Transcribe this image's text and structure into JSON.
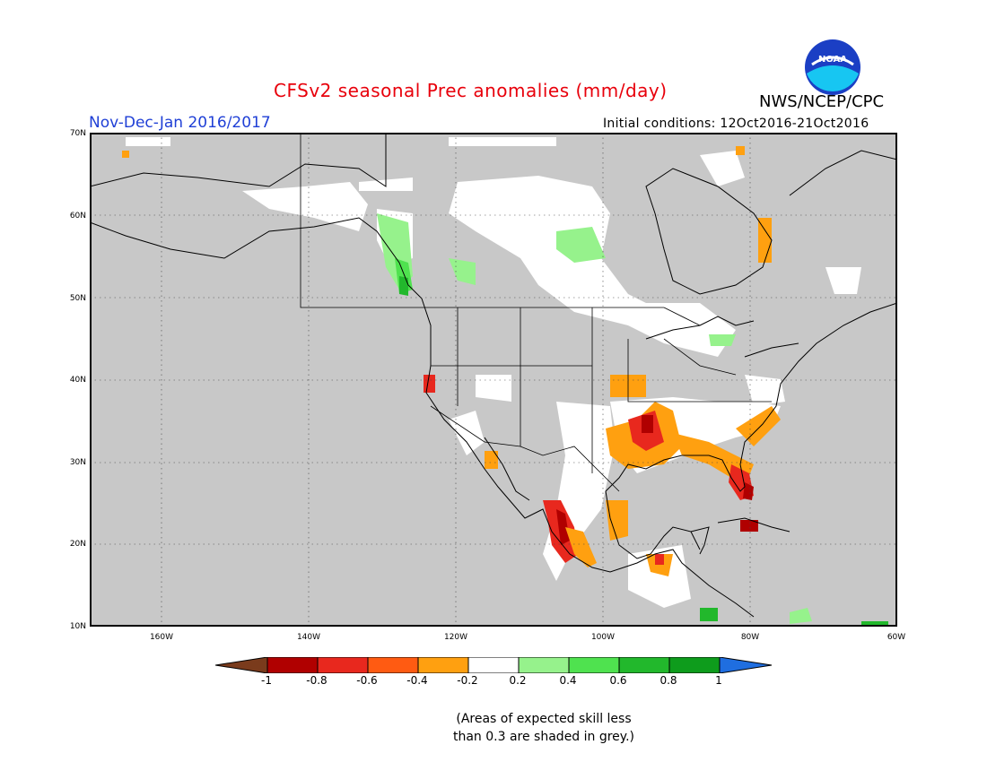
{
  "title": "CFSv2 seasonal Prec anomalies (mm/day)",
  "period": "Nov-Dec-Jan 2016/2017",
  "initial_conditions": "Initial conditions: 12Oct2016-21Oct2016",
  "organization": "NWS/NCEP/CPC",
  "logo_text": "NOAA",
  "lat_labels": [
    "70N",
    "60N",
    "50N",
    "40N",
    "30N",
    "20N",
    "10N"
  ],
  "lon_labels": [
    "160W",
    "140W",
    "120W",
    "100W",
    "80W",
    "60W"
  ],
  "colorbar": {
    "ticks": [
      "-1",
      "-0.8",
      "-0.6",
      "-0.4",
      "-0.2",
      "0.2",
      "0.4",
      "0.6",
      "0.8",
      "1"
    ],
    "colors": [
      "#7a3b1c",
      "#b00000",
      "#e8281e",
      "#ff5b12",
      "#ffa010",
      "#ffffff",
      "#96f28c",
      "#4fe24f",
      "#22b82c",
      "#0e9c1c",
      "#1f6ee0"
    ]
  },
  "skill_note_line1": "(Areas of expected skill less",
  "skill_note_line2": "than 0.3 are shaded in grey.)",
  "colors": {
    "grey_skill": "#c8c8c8",
    "neutral": "#ffffff",
    "dry_light": "#ffa010",
    "dry_med": "#e8281e",
    "dry_strong": "#b00000",
    "wet_light": "#96f28c",
    "wet_med": "#4fe24f",
    "wet_strong": "#22b82c"
  }
}
